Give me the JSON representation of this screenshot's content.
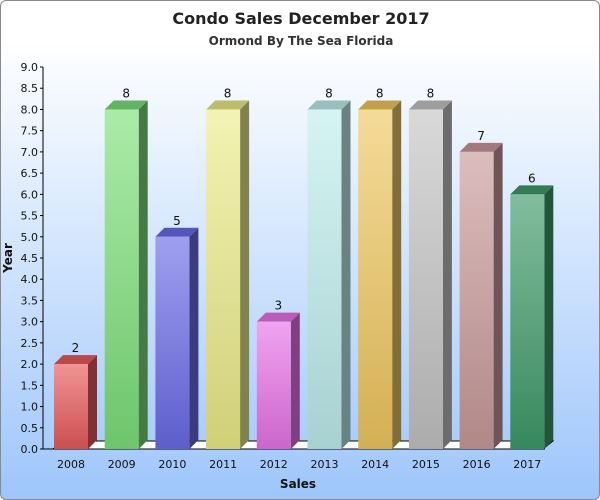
{
  "chart_data": {
    "type": "bar",
    "title": "Condo Sales December 2017",
    "subtitle": "Ormond By The Sea Florida",
    "xlabel": "Sales",
    "ylabel": "Year",
    "categories": [
      "2008",
      "2009",
      "2010",
      "2011",
      "2012",
      "2013",
      "2014",
      "2015",
      "2016",
      "2017"
    ],
    "values": [
      2,
      8,
      5,
      8,
      3,
      8,
      8,
      8,
      7,
      6
    ],
    "data_labels": [
      "2",
      "8",
      "5",
      "8",
      "3",
      "8",
      "8",
      "8",
      "7",
      "6"
    ],
    "ylim": [
      0,
      9
    ],
    "yticks": [
      "0.0",
      "0.5",
      "1.0",
      "1.5",
      "2.0",
      "2.5",
      "3.0",
      "3.5",
      "4.0",
      "4.5",
      "5.0",
      "5.5",
      "6.0",
      "6.5",
      "7.0",
      "7.5",
      "8.0",
      "8.5",
      "9.0"
    ],
    "colors": [
      "#e85a5a",
      "#7de07a",
      "#6b6be8",
      "#ecec8a",
      "#e873e8",
      "#bfeeed",
      "#f0c860",
      "#c4c4c4",
      "#c99a9a",
      "#3f9a6a"
    ],
    "style": "3d-bars",
    "grid": false,
    "legend": "none",
    "background": "#ffffff to #9ec6fb vertical gradient"
  }
}
